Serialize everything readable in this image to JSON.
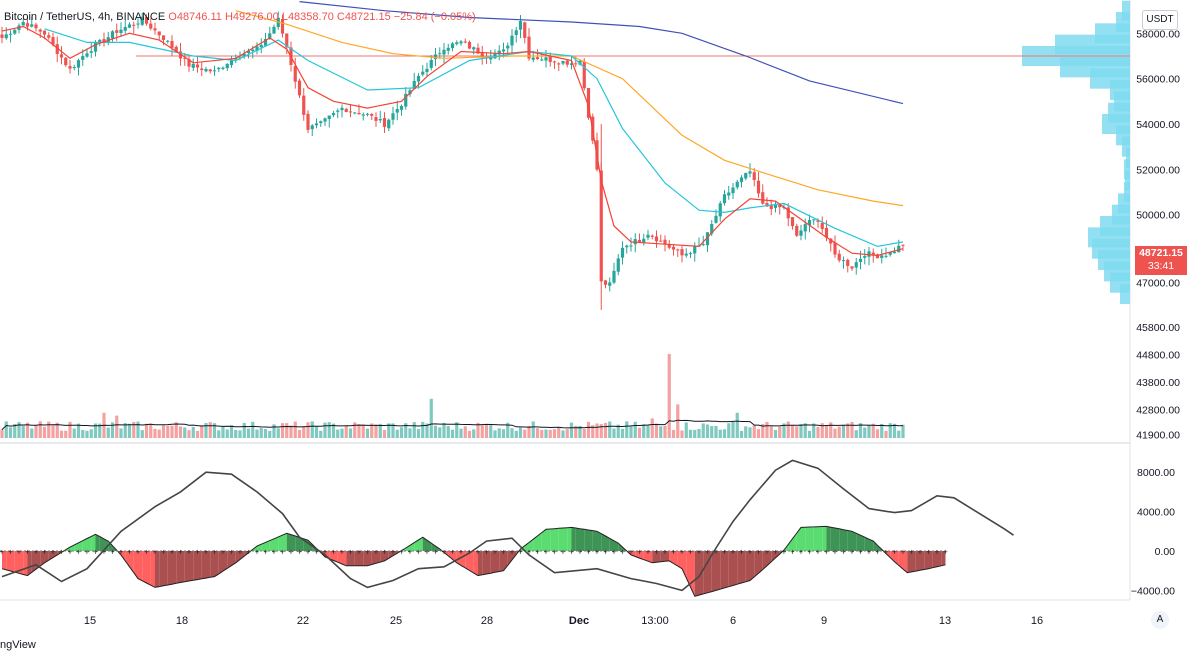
{
  "legend": {
    "title": "Bitcoin / TetherUS, 4h, BINANCE",
    "ohlc": "O48746.11 H49276.00 L48358.70 C48721.15 −25.84 (−0.05%)"
  },
  "price_axis": {
    "unit": "USDT",
    "current_price": "48721.15",
    "countdown": "33:41",
    "ticks": [
      "58000.00",
      "56000.00",
      "54000.00",
      "52000.00",
      "50000.00",
      "47000.00",
      "45800.00",
      "44800.00",
      "43800.00",
      "42800.00",
      "41900.00"
    ]
  },
  "osc_axis": {
    "ticks": [
      "8000.00",
      "4000.00",
      "0.00",
      "−4000.00"
    ]
  },
  "time_axis": {
    "ticks": [
      "15",
      "18",
      "22",
      "25",
      "28",
      "Dec",
      "13:00",
      "6",
      "9",
      "13",
      "16"
    ]
  },
  "auto_label": "A",
  "brand": "ngView",
  "colors": {
    "up": "#26a69a",
    "down": "#ef5350",
    "ema_fast": "#f44336",
    "ema_mid": "#26c6da",
    "ema_slow": "#ffa726",
    "ma_long": "#3f51b5",
    "level_line": "#f07470",
    "volume_profile": "#7fdaf0"
  },
  "chart_data": [
    {
      "type": "candlestick",
      "title": "Bitcoin / TetherUS, 4h, BINANCE",
      "ylim": [
        45000,
        59200
      ],
      "horizontal_level": 57000,
      "close_path": [
        [
          0,
          57800
        ],
        [
          5,
          58500
        ],
        [
          10,
          58000
        ],
        [
          16,
          56400
        ],
        [
          20,
          57200
        ],
        [
          27,
          58100
        ],
        [
          33,
          58600
        ],
        [
          38,
          57800
        ],
        [
          44,
          56600
        ],
        [
          50,
          56300
        ],
        [
          55,
          57000
        ],
        [
          60,
          57300
        ],
        [
          63,
          58000
        ],
        [
          65,
          58600
        ],
        [
          67,
          57400
        ],
        [
          70,
          55200
        ],
        [
          72,
          53800
        ],
        [
          75,
          54000
        ],
        [
          80,
          54700
        ],
        [
          86,
          54400
        ],
        [
          90,
          54000
        ],
        [
          94,
          54900
        ],
        [
          98,
          56100
        ],
        [
          104,
          57400
        ],
        [
          108,
          57600
        ],
        [
          114,
          57000
        ],
        [
          118,
          57200
        ],
        [
          122,
          58600
        ],
        [
          124,
          57000
        ],
        [
          130,
          56800
        ],
        [
          134,
          56700
        ],
        [
          136,
          56800
        ],
        [
          138,
          54400
        ],
        [
          140,
          52000
        ],
        [
          141,
          47000
        ],
        [
          143,
          46900
        ],
        [
          146,
          48600
        ],
        [
          150,
          48900
        ],
        [
          152,
          49200
        ],
        [
          156,
          48700
        ],
        [
          160,
          48200
        ],
        [
          165,
          48700
        ],
        [
          170,
          50800
        ],
        [
          173,
          51400
        ],
        [
          176,
          51900
        ],
        [
          179,
          50400
        ],
        [
          184,
          50300
        ],
        [
          187,
          49000
        ],
        [
          189,
          49600
        ],
        [
          192,
          49800
        ],
        [
          196,
          48200
        ],
        [
          200,
          47700
        ],
        [
          203,
          48300
        ],
        [
          206,
          48200
        ],
        [
          209,
          48300
        ],
        [
          212,
          48700
        ]
      ],
      "ema_fast": [
        [
          0,
          58100
        ],
        [
          5,
          58300
        ],
        [
          10,
          57800
        ],
        [
          16,
          56900
        ],
        [
          22,
          57500
        ],
        [
          30,
          58000
        ],
        [
          37,
          57700
        ],
        [
          45,
          56700
        ],
        [
          55,
          56900
        ],
        [
          63,
          57800
        ],
        [
          67,
          57300
        ],
        [
          72,
          55600
        ],
        [
          78,
          55000
        ],
        [
          86,
          54700
        ],
        [
          94,
          55000
        ],
        [
          100,
          56100
        ],
        [
          108,
          57200
        ],
        [
          118,
          57100
        ],
        [
          124,
          57200
        ],
        [
          134,
          56800
        ],
        [
          138,
          54800
        ],
        [
          141,
          51500
        ],
        [
          144,
          49500
        ],
        [
          148,
          48800
        ],
        [
          156,
          48700
        ],
        [
          164,
          48600
        ],
        [
          170,
          49800
        ],
        [
          176,
          50700
        ],
        [
          182,
          50600
        ],
        [
          188,
          49800
        ],
        [
          194,
          49000
        ],
        [
          200,
          48300
        ],
        [
          206,
          48200
        ],
        [
          212,
          48500
        ]
      ],
      "ema_mid": [
        [
          10,
          58200
        ],
        [
          20,
          57600
        ],
        [
          30,
          57600
        ],
        [
          45,
          57000
        ],
        [
          55,
          56800
        ],
        [
          65,
          57700
        ],
        [
          72,
          56800
        ],
        [
          86,
          55500
        ],
        [
          98,
          55600
        ],
        [
          110,
          56800
        ],
        [
          124,
          57200
        ],
        [
          134,
          57000
        ],
        [
          140,
          56000
        ],
        [
          146,
          53800
        ],
        [
          156,
          51400
        ],
        [
          164,
          50200
        ],
        [
          170,
          50100
        ],
        [
          176,
          50300
        ],
        [
          184,
          50500
        ],
        [
          196,
          49400
        ],
        [
          206,
          48600
        ],
        [
          212,
          48800
        ]
      ],
      "ema_slow": [
        [
          55,
          59000
        ],
        [
          67,
          58400
        ],
        [
          80,
          57600
        ],
        [
          92,
          57100
        ],
        [
          104,
          56900
        ],
        [
          120,
          57000
        ],
        [
          134,
          57000
        ],
        [
          146,
          56000
        ],
        [
          160,
          53500
        ],
        [
          170,
          52400
        ],
        [
          180,
          51800
        ],
        [
          192,
          51100
        ],
        [
          205,
          50600
        ],
        [
          212,
          50400
        ]
      ],
      "ma_long": [
        [
          70,
          59400
        ],
        [
          90,
          59000
        ],
        [
          110,
          58700
        ],
        [
          134,
          58500
        ],
        [
          150,
          58300
        ],
        [
          160,
          58000
        ],
        [
          175,
          57000
        ],
        [
          190,
          55900
        ],
        [
          212,
          54900
        ]
      ],
      "volume_profile": [
        [
          59000,
          8
        ],
        [
          58500,
          14
        ],
        [
          58000,
          35
        ],
        [
          57500,
          75
        ],
        [
          57000,
          108
        ],
        [
          56500,
          70
        ],
        [
          56000,
          40
        ],
        [
          55500,
          20
        ],
        [
          55000,
          16
        ],
        [
          54500,
          22
        ],
        [
          54000,
          28
        ],
        [
          53500,
          14
        ],
        [
          53000,
          8
        ],
        [
          52500,
          4
        ],
        [
          52000,
          6
        ],
        [
          51500,
          5
        ],
        [
          51000,
          6
        ],
        [
          50500,
          12
        ],
        [
          50000,
          18
        ],
        [
          49500,
          30
        ],
        [
          49000,
          42
        ],
        [
          48500,
          38
        ],
        [
          48000,
          32
        ],
        [
          47500,
          26
        ],
        [
          47000,
          20
        ],
        [
          46500,
          10
        ]
      ],
      "volume_spikes": [
        [
          0,
          300
        ],
        [
          24,
          900
        ],
        [
          27,
          800
        ],
        [
          101,
          1400
        ],
        [
          153,
          700
        ],
        [
          157,
          3000
        ],
        [
          159,
          1200
        ],
        [
          173,
          900
        ]
      ]
    },
    {
      "type": "area",
      "title": "oscillator",
      "ylim": [
        -5000,
        10000
      ],
      "histogram": [
        [
          0,
          -1800
        ],
        [
          6,
          -2500
        ],
        [
          10,
          -1200
        ],
        [
          16,
          400
        ],
        [
          22,
          1700
        ],
        [
          25,
          1000
        ],
        [
          28,
          -400
        ],
        [
          32,
          -2800
        ],
        [
          36,
          -3700
        ],
        [
          42,
          -3200
        ],
        [
          50,
          -2600
        ],
        [
          55,
          -1200
        ],
        [
          60,
          500
        ],
        [
          67,
          1800
        ],
        [
          72,
          1100
        ],
        [
          76,
          -600
        ],
        [
          81,
          -1500
        ],
        [
          86,
          -1500
        ],
        [
          90,
          -1000
        ],
        [
          95,
          300
        ],
        [
          99,
          1400
        ],
        [
          103,
          200
        ],
        [
          107,
          -1200
        ],
        [
          112,
          -2500
        ],
        [
          118,
          -2000
        ],
        [
          122,
          200
        ],
        [
          128,
          2200
        ],
        [
          134,
          2400
        ],
        [
          140,
          2000
        ],
        [
          145,
          800
        ],
        [
          148,
          -400
        ],
        [
          153,
          -1200
        ],
        [
          157,
          -1000
        ],
        [
          160,
          -1800
        ],
        [
          163,
          -4600
        ],
        [
          168,
          -4000
        ],
        [
          176,
          -3000
        ],
        [
          180,
          -1500
        ],
        [
          184,
          100
        ],
        [
          188,
          2400
        ],
        [
          194,
          2500
        ],
        [
          200,
          2000
        ],
        [
          205,
          1000
        ],
        [
          210,
          -1100
        ],
        [
          213,
          -2200
        ],
        [
          218,
          -1800
        ],
        [
          222,
          -1400
        ]
      ],
      "signal": [
        [
          0,
          -2600
        ],
        [
          8,
          -1400
        ],
        [
          14,
          -3100
        ],
        [
          20,
          -1800
        ],
        [
          28,
          2000
        ],
        [
          36,
          4500
        ],
        [
          42,
          6000
        ],
        [
          48,
          8000
        ],
        [
          54,
          7800
        ],
        [
          60,
          6000
        ],
        [
          66,
          3800
        ],
        [
          70,
          1400
        ],
        [
          76,
          -400
        ],
        [
          82,
          -2800
        ],
        [
          86,
          -3700
        ],
        [
          92,
          -3000
        ],
        [
          98,
          -1800
        ],
        [
          104,
          -1600
        ],
        [
          110,
          -200
        ],
        [
          114,
          1000
        ],
        [
          120,
          1300
        ],
        [
          124,
          -400
        ],
        [
          130,
          -2200
        ],
        [
          140,
          -1800
        ],
        [
          148,
          -2800
        ],
        [
          154,
          -3300
        ],
        [
          160,
          -4000
        ],
        [
          164,
          -2600
        ],
        [
          168,
          300
        ],
        [
          172,
          3000
        ],
        [
          176,
          5200
        ],
        [
          182,
          8200
        ],
        [
          186,
          9200
        ],
        [
          192,
          8400
        ],
        [
          198,
          6300
        ],
        [
          204,
          4300
        ],
        [
          210,
          3900
        ],
        [
          214,
          4100
        ],
        [
          220,
          5600
        ],
        [
          224,
          5400
        ],
        [
          230,
          3800
        ],
        [
          236,
          2200
        ],
        [
          238,
          1600
        ]
      ]
    }
  ]
}
